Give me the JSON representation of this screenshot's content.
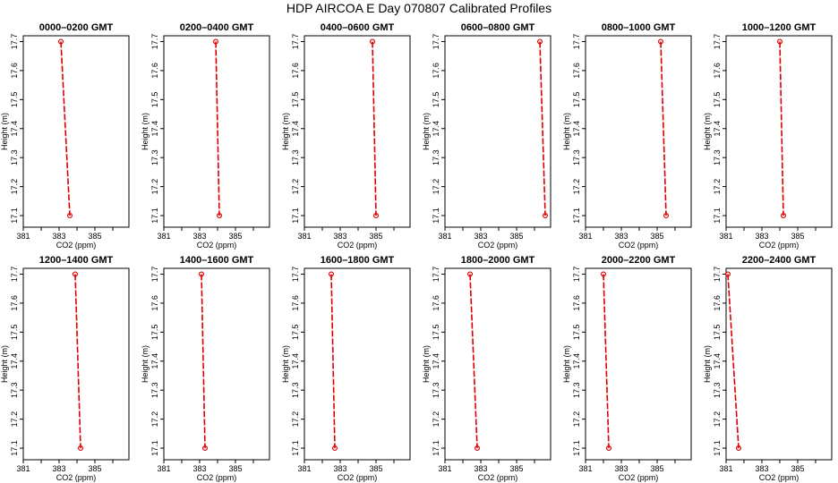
{
  "title": "HDP  AIRCOA E  Day 070807  Calibrated Profiles",
  "colors": {
    "series": "#dd0000",
    "axis": "#000000"
  },
  "chart_data": [
    {
      "type": "line",
      "title": "0000–0200 GMT",
      "xlabel": "CO2 (ppm)",
      "ylabel": "Height (m)",
      "xlim": [
        381,
        386.9
      ],
      "ylim": [
        17.06,
        17.72
      ],
      "x_ticks": [
        "381",
        "383",
        "385"
      ],
      "y_ticks": [
        "17.1",
        "17.2",
        "17.3",
        "17.4",
        "17.5",
        "17.6",
        "17.7"
      ],
      "grid": false,
      "series": [
        {
          "x": [
            383.1,
            383.6
          ],
          "y": [
            17.7,
            17.1
          ]
        }
      ]
    },
    {
      "type": "line",
      "title": "0200–0400 GMT",
      "xlabel": "CO2 (ppm)",
      "ylabel": "Height (m)",
      "xlim": [
        381,
        386.9
      ],
      "ylim": [
        17.06,
        17.72
      ],
      "x_ticks": [
        "381",
        "383",
        "385"
      ],
      "y_ticks": [
        "17.1",
        "17.2",
        "17.3",
        "17.4",
        "17.5",
        "17.6",
        "17.7"
      ],
      "grid": false,
      "series": [
        {
          "x": [
            383.9,
            384.1
          ],
          "y": [
            17.7,
            17.1
          ]
        }
      ]
    },
    {
      "type": "line",
      "title": "0400–0600 GMT",
      "xlabel": "CO2 (ppm)",
      "ylabel": "Height (m)",
      "xlim": [
        381,
        386.9
      ],
      "ylim": [
        17.06,
        17.72
      ],
      "x_ticks": [
        "381",
        "383",
        "385"
      ],
      "y_ticks": [
        "17.1",
        "17.2",
        "17.3",
        "17.4",
        "17.5",
        "17.6",
        "17.7"
      ],
      "grid": false,
      "series": [
        {
          "x": [
            384.8,
            385.0
          ],
          "y": [
            17.7,
            17.1
          ]
        }
      ]
    },
    {
      "type": "line",
      "title": "0600–0800 GMT",
      "xlabel": "CO2 (ppm)",
      "ylabel": "Height (m)",
      "xlim": [
        381,
        386.9
      ],
      "ylim": [
        17.06,
        17.72
      ],
      "x_ticks": [
        "381",
        "383",
        "385"
      ],
      "y_ticks": [
        "17.1",
        "17.2",
        "17.3",
        "17.4",
        "17.5",
        "17.6",
        "17.7"
      ],
      "grid": false,
      "series": [
        {
          "x": [
            386.3,
            386.6
          ],
          "y": [
            17.7,
            17.1
          ]
        }
      ]
    },
    {
      "type": "line",
      "title": "0800–1000 GMT",
      "xlabel": "CO2 (ppm)",
      "ylabel": "Height (m)",
      "xlim": [
        381,
        386.9
      ],
      "ylim": [
        17.06,
        17.72
      ],
      "x_ticks": [
        "381",
        "383",
        "385"
      ],
      "y_ticks": [
        "17.1",
        "17.2",
        "17.3",
        "17.4",
        "17.5",
        "17.6",
        "17.7"
      ],
      "grid": false,
      "series": [
        {
          "x": [
            385.2,
            385.5
          ],
          "y": [
            17.7,
            17.1
          ]
        }
      ]
    },
    {
      "type": "line",
      "title": "1000–1200 GMT",
      "xlabel": "CO2 (ppm)",
      "ylabel": "Height (m)",
      "xlim": [
        381,
        386.9
      ],
      "ylim": [
        17.06,
        17.72
      ],
      "x_ticks": [
        "381",
        "383",
        "385"
      ],
      "y_ticks": [
        "17.1",
        "17.2",
        "17.3",
        "17.4",
        "17.5",
        "17.6",
        "17.7"
      ],
      "grid": false,
      "series": [
        {
          "x": [
            384.0,
            384.2
          ],
          "y": [
            17.7,
            17.1
          ]
        }
      ]
    },
    {
      "type": "line",
      "title": "1200–1400 GMT",
      "xlabel": "CO2 (ppm)",
      "ylabel": "Height (m)",
      "xlim": [
        381,
        386.9
      ],
      "ylim": [
        17.06,
        17.72
      ],
      "x_ticks": [
        "381",
        "383",
        "385"
      ],
      "y_ticks": [
        "17.1",
        "17.2",
        "17.3",
        "17.4",
        "17.5",
        "17.6",
        "17.7"
      ],
      "grid": false,
      "series": [
        {
          "x": [
            383.9,
            384.2
          ],
          "y": [
            17.7,
            17.1
          ]
        }
      ]
    },
    {
      "type": "line",
      "title": "1400–1600 GMT",
      "xlabel": "CO2 (ppm)",
      "ylabel": "Height (m)",
      "xlim": [
        381,
        386.9
      ],
      "ylim": [
        17.06,
        17.72
      ],
      "x_ticks": [
        "381",
        "383",
        "385"
      ],
      "y_ticks": [
        "17.1",
        "17.2",
        "17.3",
        "17.4",
        "17.5",
        "17.6",
        "17.7"
      ],
      "grid": false,
      "series": [
        {
          "x": [
            383.1,
            383.3
          ],
          "y": [
            17.7,
            17.1
          ]
        }
      ]
    },
    {
      "type": "line",
      "title": "1600–1800 GMT",
      "xlabel": "CO2 (ppm)",
      "ylabel": "Height (m)",
      "xlim": [
        381,
        386.9
      ],
      "ylim": [
        17.06,
        17.72
      ],
      "x_ticks": [
        "381",
        "383",
        "385"
      ],
      "y_ticks": [
        "17.1",
        "17.2",
        "17.3",
        "17.4",
        "17.5",
        "17.6",
        "17.7"
      ],
      "grid": false,
      "series": [
        {
          "x": [
            382.5,
            382.7
          ],
          "y": [
            17.7,
            17.1
          ]
        }
      ]
    },
    {
      "type": "line",
      "title": "1800–2000 GMT",
      "xlabel": "CO2 (ppm)",
      "ylabel": "Height (m)",
      "xlim": [
        381,
        386.9
      ],
      "ylim": [
        17.06,
        17.72
      ],
      "x_ticks": [
        "381",
        "383",
        "385"
      ],
      "y_ticks": [
        "17.1",
        "17.2",
        "17.3",
        "17.4",
        "17.5",
        "17.6",
        "17.7"
      ],
      "grid": false,
      "series": [
        {
          "x": [
            382.4,
            382.8
          ],
          "y": [
            17.7,
            17.1
          ]
        }
      ]
    },
    {
      "type": "line",
      "title": "2000–2200 GMT",
      "xlabel": "CO2 (ppm)",
      "ylabel": "Height (m)",
      "xlim": [
        381,
        386.9
      ],
      "ylim": [
        17.06,
        17.72
      ],
      "x_ticks": [
        "381",
        "383",
        "385"
      ],
      "y_ticks": [
        "17.1",
        "17.2",
        "17.3",
        "17.4",
        "17.5",
        "17.6",
        "17.7"
      ],
      "grid": false,
      "series": [
        {
          "x": [
            382.0,
            382.3
          ],
          "y": [
            17.7,
            17.1
          ]
        }
      ]
    },
    {
      "type": "line",
      "title": "2200–2400 GMT",
      "xlabel": "CO2 (ppm)",
      "ylabel": "Height (m)",
      "xlim": [
        381,
        386.9
      ],
      "ylim": [
        17.06,
        17.72
      ],
      "x_ticks": [
        "381",
        "383",
        "385"
      ],
      "y_ticks": [
        "17.1",
        "17.2",
        "17.3",
        "17.4",
        "17.5",
        "17.6",
        "17.7"
      ],
      "grid": false,
      "series": [
        {
          "x": [
            381.1,
            381.7
          ],
          "y": [
            17.7,
            17.1
          ]
        }
      ]
    }
  ]
}
